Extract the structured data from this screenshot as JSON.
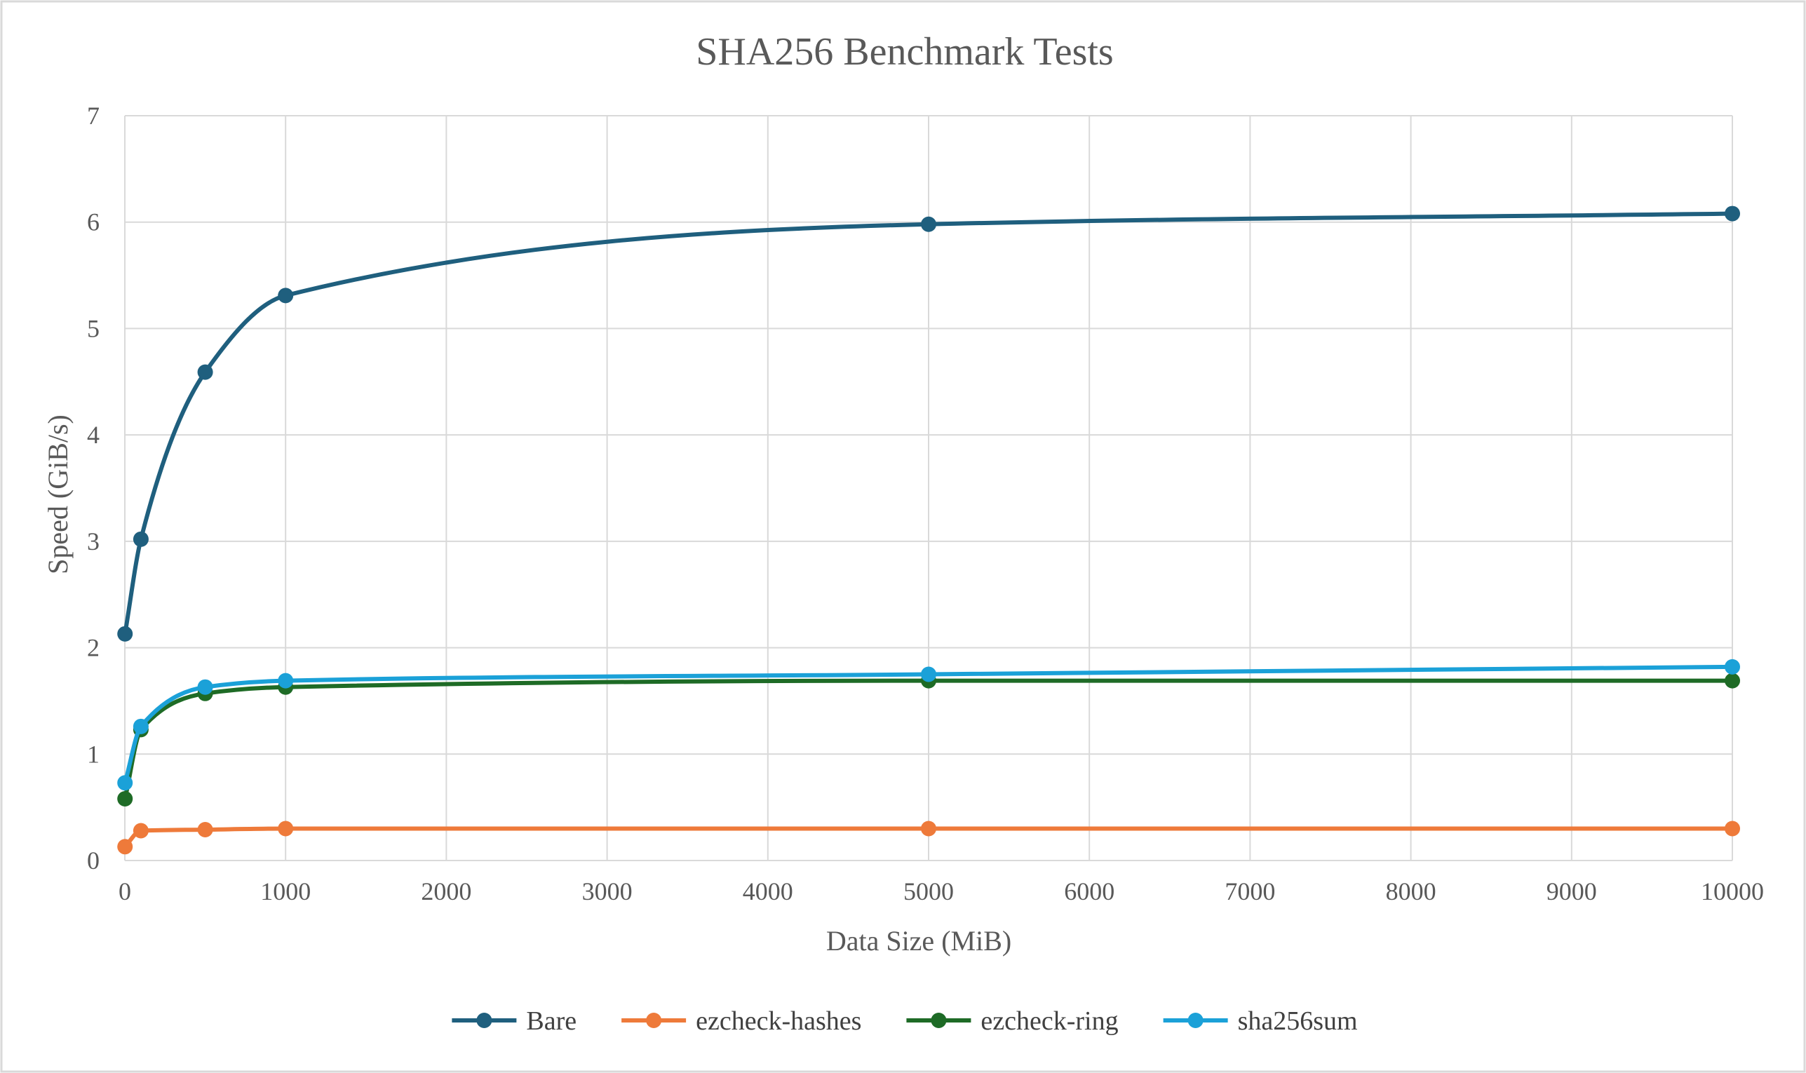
{
  "chart_data": {
    "type": "line",
    "title": "SHA256 Benchmark Tests",
    "xlabel": "Data Size (MiB)",
    "ylabel": "Speed (GiB/s)",
    "xlim": [
      0,
      10000
    ],
    "ylim": [
      0,
      7
    ],
    "x_ticks": [
      "0",
      "1000",
      "2000",
      "3000",
      "4000",
      "5000",
      "6000",
      "7000",
      "8000",
      "9000",
      "10000"
    ],
    "y_ticks": [
      "0",
      "1",
      "2",
      "3",
      "4",
      "5",
      "6",
      "7"
    ],
    "grid": true,
    "smooth": true,
    "legend_position": "bottom",
    "x": [
      1,
      100,
      500,
      1000,
      5000,
      10000
    ],
    "series": [
      {
        "name": "Bare",
        "color": "#1f5f7e",
        "values": [
          2.13,
          3.02,
          4.59,
          5.31,
          5.98,
          6.08
        ]
      },
      {
        "name": "ezcheck-hashes",
        "color": "#ee7a3a",
        "values": [
          0.13,
          0.28,
          0.29,
          0.3,
          0.3,
          0.3
        ]
      },
      {
        "name": "ezcheck-ring",
        "color": "#1e6b26",
        "values": [
          0.58,
          1.23,
          1.57,
          1.63,
          1.69,
          1.69
        ]
      },
      {
        "name": "sha256sum",
        "color": "#1ba1d8",
        "values": [
          0.73,
          1.26,
          1.63,
          1.69,
          1.75,
          1.82
        ]
      }
    ]
  }
}
